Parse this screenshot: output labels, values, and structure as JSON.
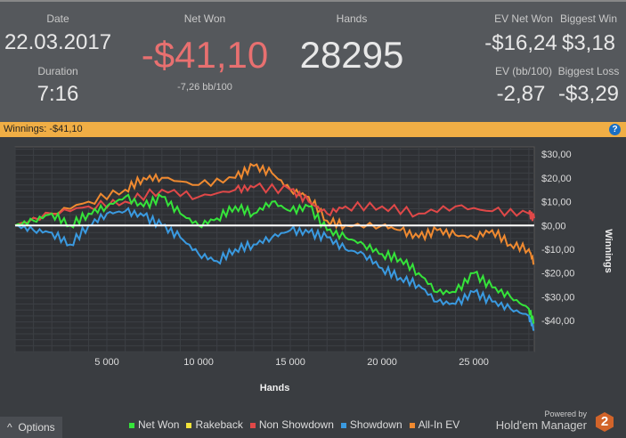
{
  "header": {
    "date_label": "Date",
    "date": "22.03.2017",
    "duration_label": "Duration",
    "duration": "7:16",
    "netwon_label": "Net Won",
    "netwon": "-$41,10",
    "bb100": "-7,26 bb/100",
    "hands_label": "Hands",
    "hands": "28295",
    "evnet_label": "EV Net Won",
    "evnet": "-$16,24",
    "bigwin_label": "Biggest Win",
    "bigwin": "$3,18",
    "evbb_label": "EV (bb/100)",
    "evbb": "-2,87",
    "bigloss_label": "Biggest Loss",
    "bigloss": "-$3,29"
  },
  "bar": {
    "label": "Winnings:",
    "value": "-$41,10",
    "help": "?"
  },
  "footer": {
    "options": "Options",
    "powered": "Powered by",
    "brand": "Hold'em Manager",
    "brand_num": "2"
  },
  "chart_data": {
    "type": "line",
    "xlabel": "Hands",
    "ylabel": "Winnings",
    "xlim": [
      0,
      28295
    ],
    "ylim": [
      -53,
      33
    ],
    "xticks": [
      5000,
      10000,
      15000,
      20000,
      25000
    ],
    "xtick_labels": [
      "5 000",
      "10 000",
      "15 000",
      "20 000",
      "25 000"
    ],
    "yticks": [
      30,
      20,
      10,
      0,
      -10,
      -20,
      -30,
      -40
    ],
    "ytick_labels": [
      "$30,00",
      "$20,00",
      "$10,00",
      "$0,00",
      "-$10,00",
      "-$20,00",
      "-$30,00",
      "-$40,00"
    ],
    "series": [
      {
        "name": "Net Won",
        "color": "#35e43a",
        "x": [
          0,
          1000,
          2000,
          3000,
          4000,
          5000,
          6000,
          7000,
          8000,
          9000,
          10000,
          11000,
          12000,
          13000,
          14000,
          15000,
          16000,
          17000,
          18000,
          19000,
          20000,
          21000,
          22000,
          23000,
          24000,
          25000,
          26000,
          27000,
          28000,
          28295
        ],
        "y": [
          0,
          2,
          5,
          0,
          5,
          8,
          12,
          8,
          12,
          5,
          0,
          3,
          8,
          5,
          10,
          6,
          8,
          -2,
          -5,
          -8,
          -12,
          -14,
          -20,
          -28,
          -28,
          -20,
          -26,
          -30,
          -35,
          -41
        ]
      },
      {
        "name": "Rakeback",
        "color": "#f2e33a",
        "x": [],
        "y": []
      },
      {
        "name": "Non Showdown",
        "color": "#e04848",
        "x": [
          0,
          2000,
          4000,
          6000,
          8000,
          10000,
          12000,
          13000,
          15000,
          16000,
          17000,
          18000,
          20000,
          22000,
          24000,
          26000,
          28000,
          28295
        ],
        "y": [
          0,
          5,
          8,
          10,
          15,
          12,
          15,
          16,
          15,
          10,
          5,
          8,
          8,
          5,
          8,
          6,
          5,
          3
        ]
      },
      {
        "name": "Showdown",
        "color": "#3a9ae0",
        "x": [
          0,
          1000,
          2000,
          3000,
          4000,
          5000,
          6000,
          7000,
          8000,
          9000,
          10000,
          11000,
          12000,
          13000,
          14000,
          15000,
          16000,
          17000,
          18000,
          19000,
          20000,
          21000,
          22000,
          23000,
          24000,
          25000,
          26000,
          27000,
          28000,
          28295
        ],
        "y": [
          0,
          -2,
          -3,
          -8,
          0,
          5,
          6,
          4,
          0,
          -5,
          -12,
          -15,
          -10,
          -8,
          -5,
          -2,
          -3,
          -5,
          -10,
          -12,
          -18,
          -22,
          -25,
          -32,
          -33,
          -28,
          -32,
          -35,
          -38,
          -44
        ]
      },
      {
        "name": "All-In EV",
        "color": "#f08a30",
        "x": [
          0,
          2000,
          4000,
          6000,
          7000,
          8000,
          10000,
          12000,
          13000,
          14000,
          15000,
          16000,
          17000,
          18000,
          20000,
          21000,
          22000,
          23000,
          24000,
          25000,
          26000,
          27000,
          28000,
          28295
        ],
        "y": [
          0,
          5,
          10,
          15,
          20,
          20,
          17,
          20,
          25,
          22,
          15,
          12,
          2,
          0,
          0,
          -2,
          -5,
          -2,
          -4,
          -5,
          -2,
          -8,
          -10,
          -16
        ]
      }
    ]
  }
}
